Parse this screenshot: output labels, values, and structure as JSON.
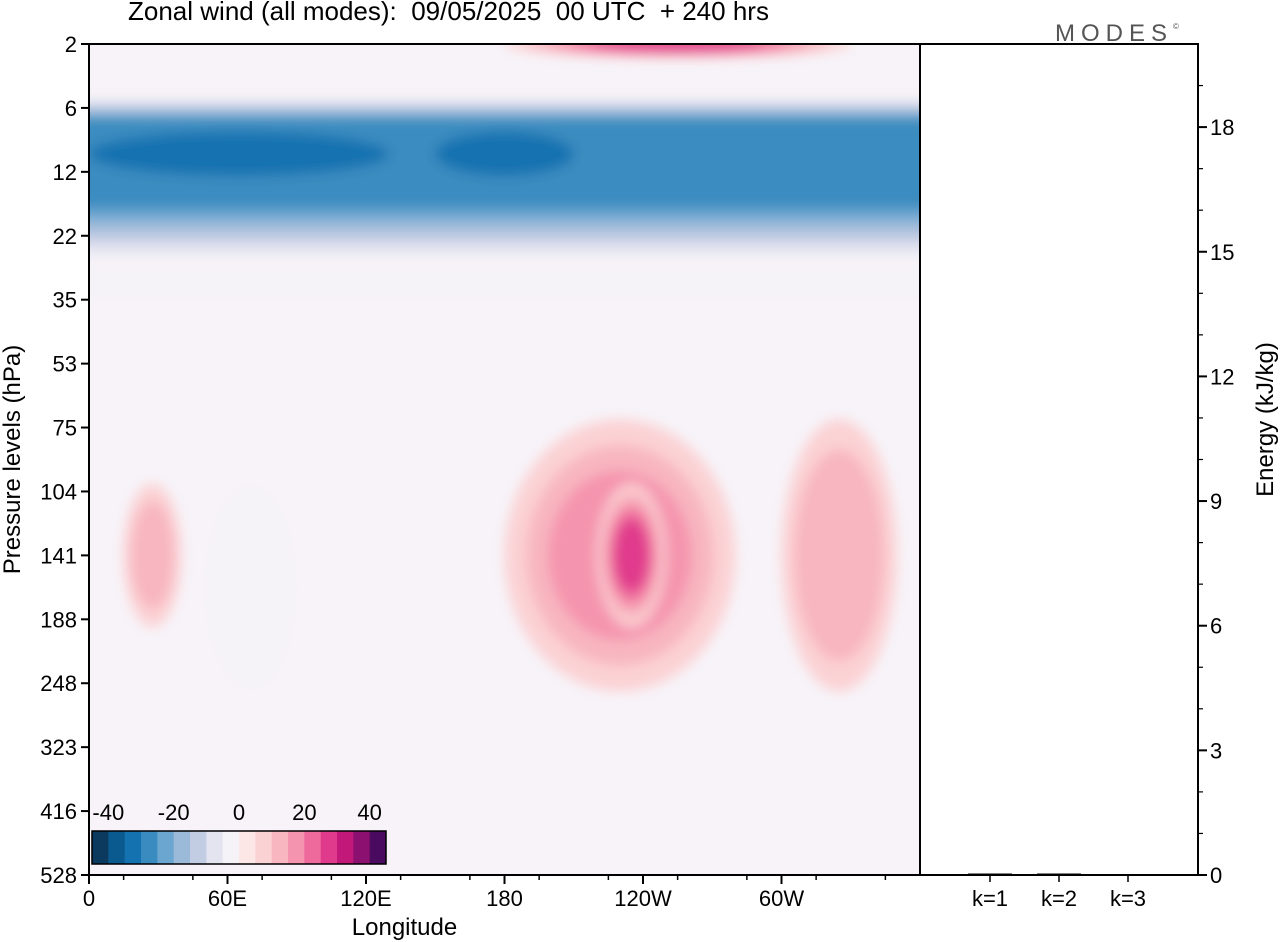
{
  "title": "Zonal wind (all modes):  09/05/2025  00 UTC  + 240 hrs",
  "logo": "MODES",
  "logo_mark": "©",
  "colors": {
    "palette": [
      "#0b3a5e",
      "#0a5a8f",
      "#1572b0",
      "#3a8cc0",
      "#6aa6cf",
      "#9bbada",
      "#c2cce3",
      "#e4e4f0",
      "#f6f3f8",
      "#fde6e6",
      "#fbd2d4",
      "#f8b6c0",
      "#f594ae",
      "#ef6a9c",
      "#e03a8c",
      "#c2187a",
      "#8c1070",
      "#4a0a60"
    ],
    "neutral_bg": "#f7f3f8"
  },
  "chart_data": [
    {
      "type": "heatmap",
      "title": "Zonal wind (all modes):  09/05/2025  00 UTC  + 240 hrs",
      "xlabel": "Longitude",
      "ylabel": "Pressure levels (hPa)",
      "x_ticks": [
        "0",
        "60E",
        "120E",
        "180",
        "120W",
        "60W"
      ],
      "x_tick_degrees": [
        0,
        60,
        120,
        180,
        240,
        300
      ],
      "xlim": [
        0,
        360
      ],
      "y_ticks": [
        "2",
        "6",
        "12",
        "22",
        "35",
        "53",
        "75",
        "104",
        "141",
        "188",
        "248",
        "323",
        "416",
        "528"
      ],
      "y_scale": "categorical pressure levels, top to bottom",
      "colorbar": {
        "labels": [
          "-40",
          "-20",
          "0",
          "20",
          "40"
        ],
        "min": -45,
        "max": 45,
        "step": 5,
        "placement": "bottom-left"
      },
      "features": [
        {
          "level_range": [
            "6",
            "22"
          ],
          "lon_range": [
            0,
            360
          ],
          "value": -30
        },
        {
          "level_range": [
            "2",
            "2"
          ],
          "lon_range": [
            180,
            330
          ],
          "value": 25
        },
        {
          "level_range": [
            "75",
            "248"
          ],
          "lon_range": [
            180,
            280
          ],
          "value": 15
        },
        {
          "level_range": [
            "104",
            "188"
          ],
          "lon_range": [
            220,
            250
          ],
          "value": 25
        },
        {
          "level_range": [
            "104",
            "248"
          ],
          "lon_range": [
            50,
            90
          ],
          "value": -8
        },
        {
          "level_range": [
            "104",
            "188"
          ],
          "lon_range": [
            15,
            40
          ],
          "value": 10
        },
        {
          "level_range": [
            "75",
            "248"
          ],
          "lon_range": [
            300,
            350
          ],
          "value": 12
        }
      ]
    },
    {
      "type": "bar",
      "categories": [
        "k=1",
        "k=2",
        "k=3"
      ],
      "values": [
        0.03,
        0.03,
        0.0
      ],
      "ylabel": "Energy (kJ/kg)",
      "ylim": [
        0,
        20
      ],
      "y_ticks": [
        "0",
        "3",
        "6",
        "9",
        "12",
        "15",
        "18"
      ],
      "y_tick_values": [
        0,
        3,
        6,
        9,
        12,
        15,
        18
      ],
      "y_axis_side": "right"
    }
  ]
}
